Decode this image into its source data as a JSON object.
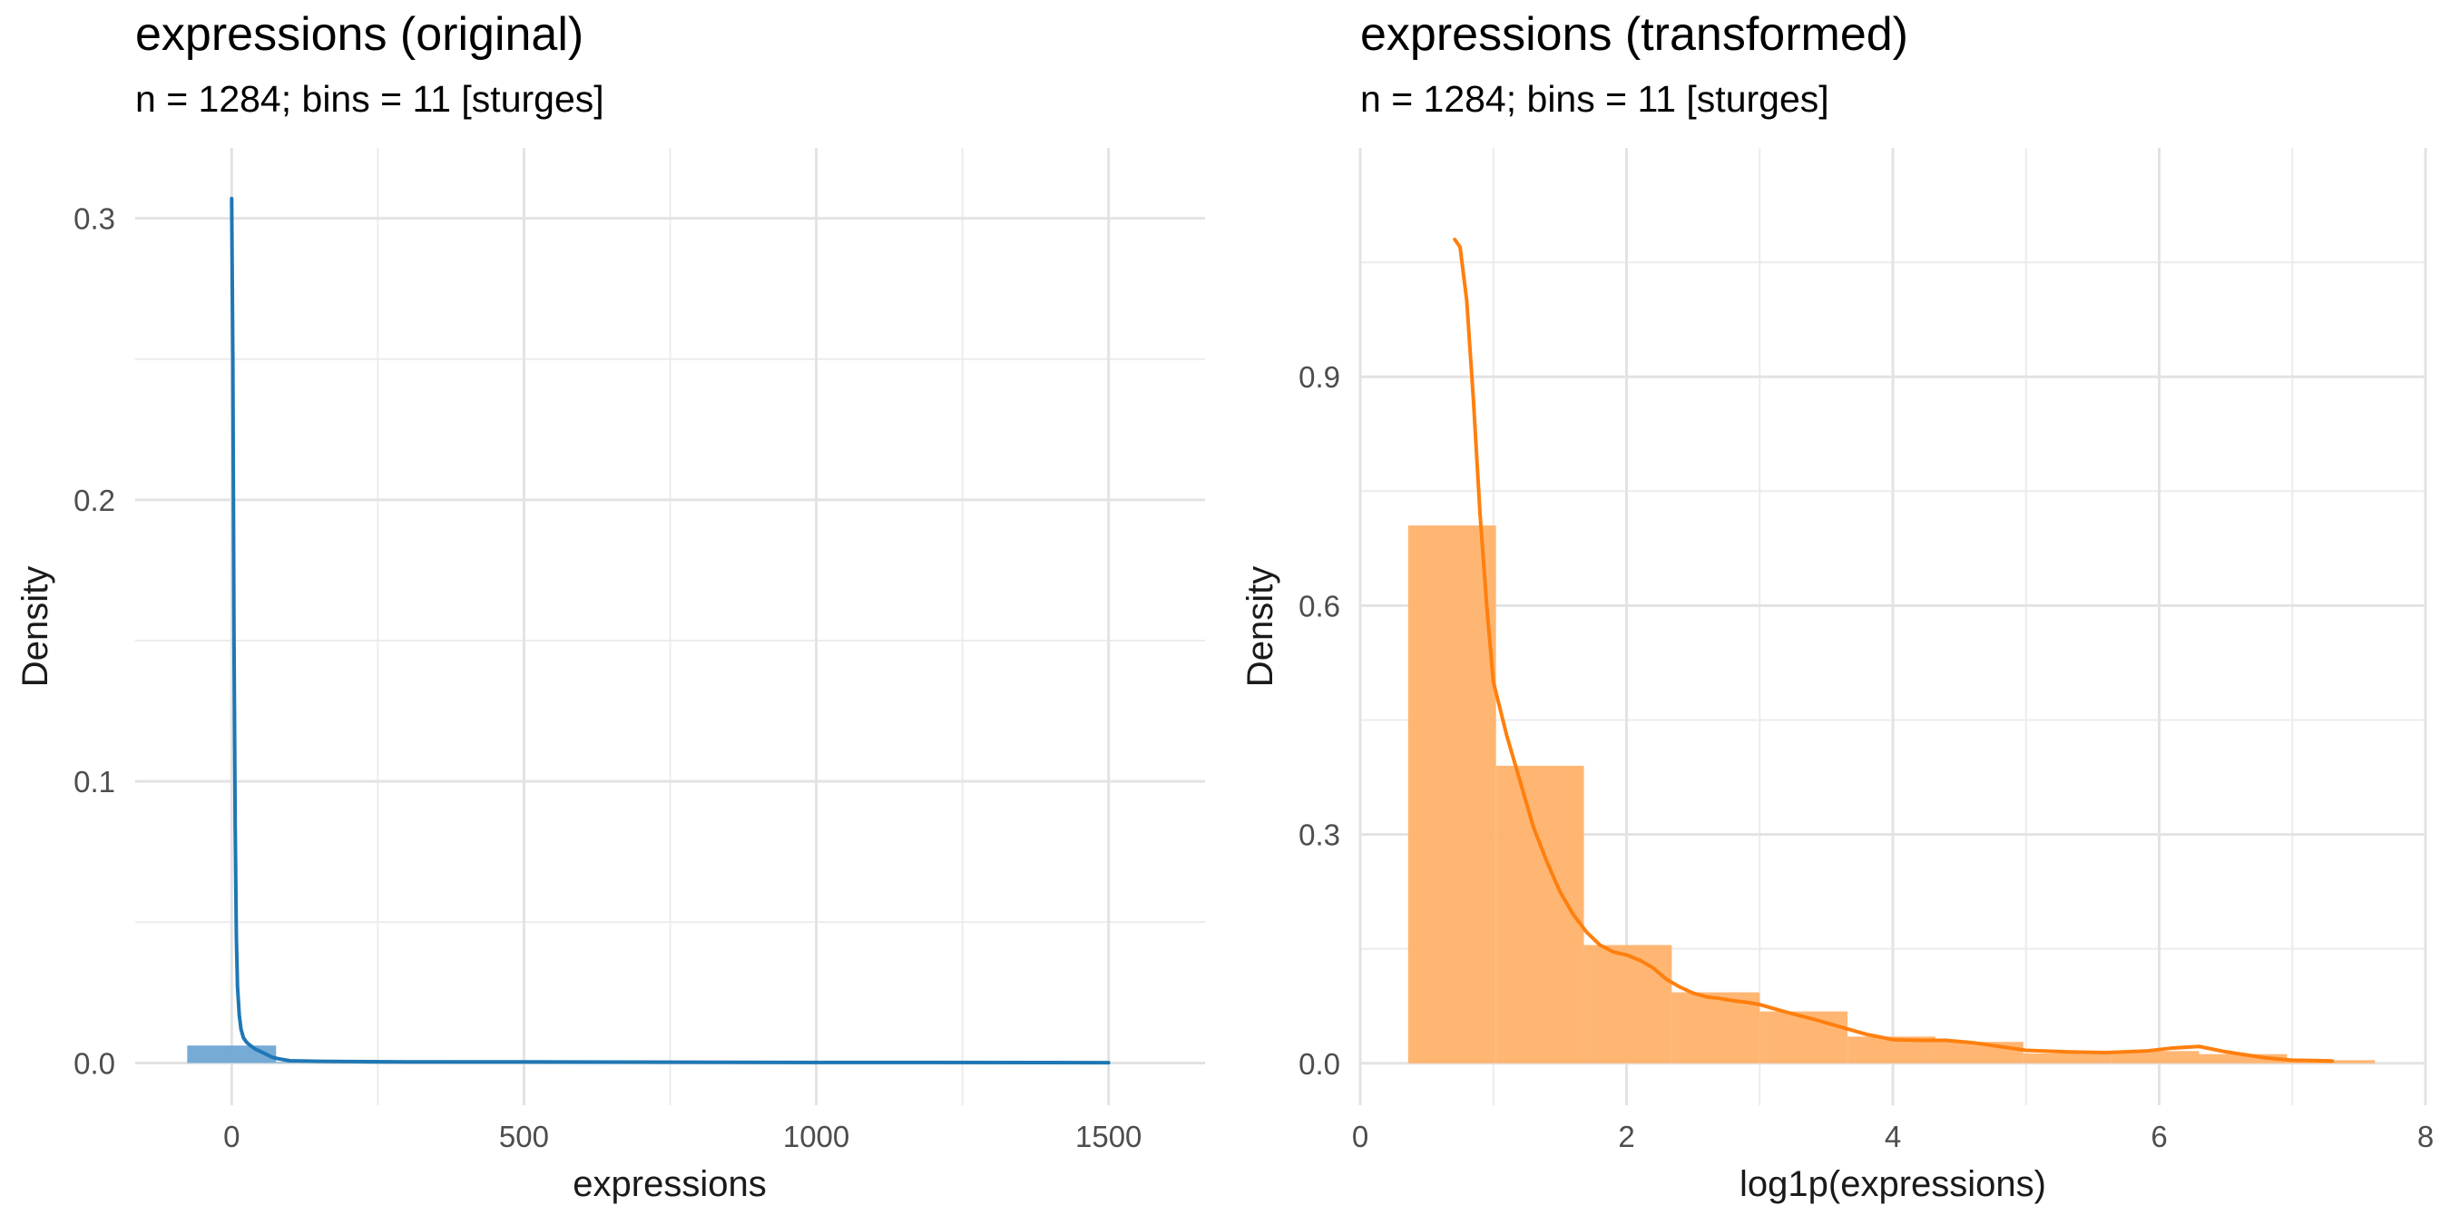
{
  "panels": [
    {
      "title": "expressions (original)",
      "subtitle": "n = 1284; bins = 11 [sturges]",
      "color": "#1f77b4",
      "bar_color": "#6fa7d4"
    },
    {
      "title": "expressions (transformed)",
      "subtitle": "n = 1284; bins = 11 [sturges]",
      "color": "#ff7f0e",
      "bar_color": "#ffb26c"
    }
  ],
  "chart_data": [
    {
      "type": "bar",
      "title": "expressions (original)",
      "subtitle": "n = 1284; bins = 11 [sturges]",
      "xlabel": "expressions",
      "ylabel": "Density",
      "xlim": [
        -165,
        1665
      ],
      "ylim": [
        -0.015,
        0.325
      ],
      "xticks": [
        0,
        500,
        1000,
        1500
      ],
      "xtick_labels": [
        "0",
        "500",
        "1000",
        "1500"
      ],
      "yticks": [
        0.0,
        0.1,
        0.2,
        0.3
      ],
      "ytick_labels": [
        "0.0",
        "0.1",
        "0.2",
        "0.3"
      ],
      "grid": true,
      "bins": [
        {
          "x0": -76,
          "x1": 76,
          "density": 0.0062
        },
        {
          "x0": 76,
          "x1": 228,
          "density": 0.00035
        },
        {
          "x0": 228,
          "x1": 380,
          "density": 8e-05
        },
        {
          "x0": 380,
          "x1": 532,
          "density": 5e-05
        },
        {
          "x0": 532,
          "x1": 684,
          "density": 4e-05
        },
        {
          "x0": 684,
          "x1": 836,
          "density": 3e-05
        },
        {
          "x0": 836,
          "x1": 988,
          "density": 2e-05
        },
        {
          "x0": 988,
          "x1": 1140,
          "density": 2e-05
        },
        {
          "x0": 1140,
          "x1": 1292,
          "density": 1e-05
        },
        {
          "x0": 1292,
          "x1": 1444,
          "density": 1e-05
        },
        {
          "x0": 1444,
          "x1": 1500,
          "density": 1e-05
        }
      ],
      "density_curve": {
        "x": [
          0,
          2,
          4,
          6,
          8,
          10,
          13,
          16,
          20,
          25,
          30,
          40,
          50,
          60,
          70,
          80,
          100,
          150,
          200,
          300,
          500,
          700,
          1000,
          1200,
          1500
        ],
        "y": [
          0.307,
          0.25,
          0.15,
          0.085,
          0.045,
          0.027,
          0.017,
          0.012,
          0.009,
          0.0075,
          0.0065,
          0.005,
          0.004,
          0.003,
          0.002,
          0.0015,
          0.0008,
          0.0006,
          0.0005,
          0.0004,
          0.0004,
          0.0003,
          0.0002,
          0.0002,
          0.0001
        ]
      }
    },
    {
      "type": "bar",
      "title": "expressions (transformed)",
      "subtitle": "n = 1284; bins = 11 [sturges]",
      "xlabel": "log1p(expressions)",
      "ylabel": "Density",
      "xlim": [
        0,
        8
      ],
      "ylim": [
        -0.055,
        1.2
      ],
      "xticks": [
        0,
        2,
        4,
        6,
        8
      ],
      "xtick_labels": [
        "0",
        "2",
        "4",
        "6",
        "8"
      ],
      "yticks": [
        0.0,
        0.3,
        0.6,
        0.9
      ],
      "ytick_labels": [
        "0.0",
        "0.3",
        "0.6",
        "0.9"
      ],
      "grid": true,
      "bins": [
        {
          "x0": 0.36,
          "x1": 1.02,
          "density": 0.705
        },
        {
          "x0": 1.02,
          "x1": 1.68,
          "density": 0.39
        },
        {
          "x0": 1.68,
          "x1": 2.34,
          "density": 0.155
        },
        {
          "x0": 2.34,
          "x1": 3.0,
          "density": 0.093
        },
        {
          "x0": 3.0,
          "x1": 3.66,
          "density": 0.068
        },
        {
          "x0": 3.66,
          "x1": 4.32,
          "density": 0.035
        },
        {
          "x0": 4.32,
          "x1": 4.98,
          "density": 0.028
        },
        {
          "x0": 4.98,
          "x1": 5.64,
          "density": 0.013
        },
        {
          "x0": 5.64,
          "x1": 6.3,
          "density": 0.016
        },
        {
          "x0": 6.3,
          "x1": 6.96,
          "density": 0.012
        },
        {
          "x0": 6.96,
          "x1": 7.62,
          "density": 0.004
        }
      ],
      "density_curve": {
        "x": [
          0.71,
          0.75,
          0.8,
          0.85,
          0.9,
          0.95,
          1.0,
          1.1,
          1.2,
          1.3,
          1.4,
          1.5,
          1.6,
          1.7,
          1.8,
          1.9,
          2.0,
          2.1,
          2.2,
          2.3,
          2.4,
          2.5,
          2.6,
          2.7,
          2.8,
          2.9,
          3.0,
          3.2,
          3.4,
          3.6,
          3.8,
          4.0,
          4.2,
          4.4,
          4.6,
          4.8,
          5.0,
          5.3,
          5.6,
          5.9,
          6.1,
          6.3,
          6.5,
          6.8,
          7.0,
          7.3
        ],
        "y": [
          1.08,
          1.07,
          1.0,
          0.87,
          0.72,
          0.6,
          0.5,
          0.43,
          0.37,
          0.31,
          0.265,
          0.225,
          0.195,
          0.172,
          0.155,
          0.146,
          0.142,
          0.135,
          0.125,
          0.11,
          0.1,
          0.092,
          0.087,
          0.085,
          0.082,
          0.08,
          0.077,
          0.067,
          0.058,
          0.048,
          0.038,
          0.031,
          0.03,
          0.03,
          0.027,
          0.022,
          0.017,
          0.015,
          0.014,
          0.016,
          0.02,
          0.022,
          0.015,
          0.007,
          0.004,
          0.003
        ]
      }
    }
  ]
}
